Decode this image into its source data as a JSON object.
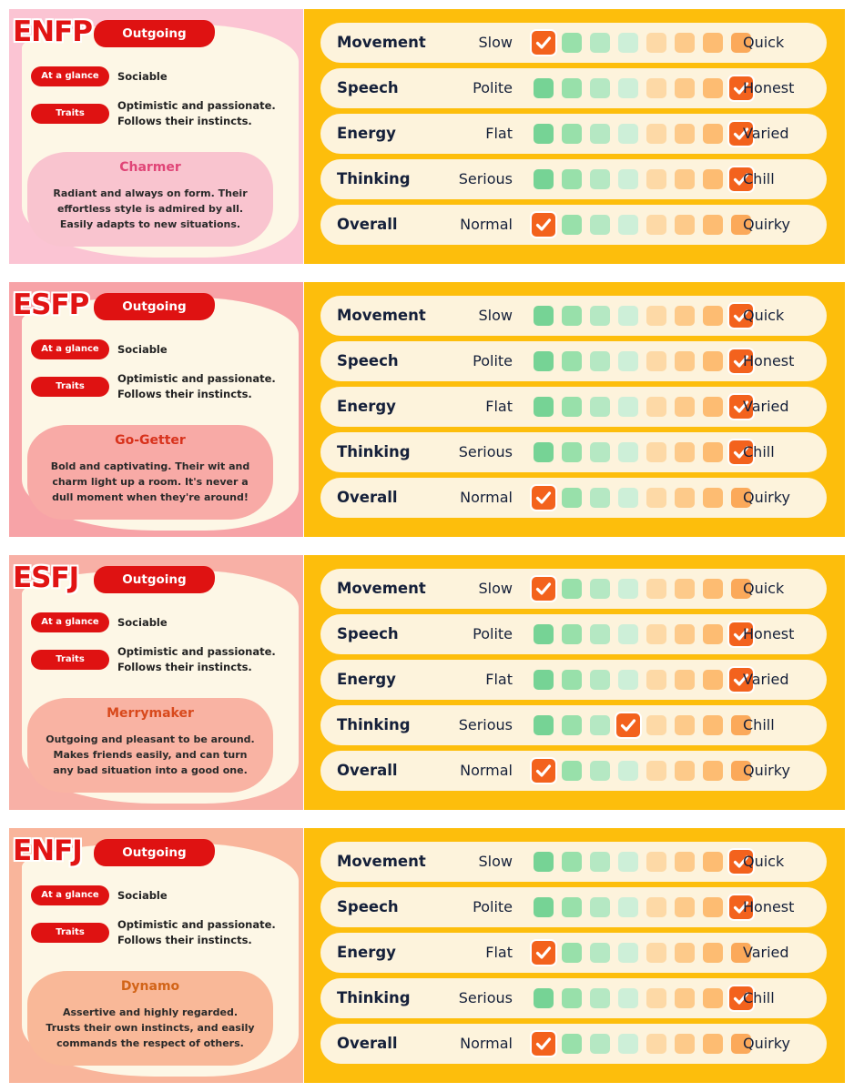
{
  "scale_colors": [
    "#76d395",
    "#98e0aa",
    "#b5e8c3",
    "#cdefd8",
    "#fdd9a6",
    "#fdca8a",
    "#fdbc72",
    "#fba95a"
  ],
  "cards": [
    {
      "code": "ENFP",
      "category": "Outgoing",
      "glance_label": "At a glance",
      "glance_value": "Sociable",
      "traits_label": "Traits",
      "traits_line1": "Optimistic and passionate.",
      "traits_line2": "Follows their instincts.",
      "persona": "Charmer",
      "desc": [
        "Radiant and always on form. Their",
        "effortless style is admired by all.",
        "Easily adapts to new situations."
      ],
      "bg": "#fbc4d3",
      "box": "#f9c4cf",
      "name_color": "#e04577",
      "ratings": [
        {
          "label": "Movement",
          "left": "Slow",
          "right": "Quick",
          "value": 1
        },
        {
          "label": "Speech",
          "left": "Polite",
          "right": "Honest",
          "value": 8
        },
        {
          "label": "Energy",
          "left": "Flat",
          "right": "Varied",
          "value": 8
        },
        {
          "label": "Thinking",
          "left": "Serious",
          "right": "Chill",
          "value": 8
        },
        {
          "label": "Overall",
          "left": "Normal",
          "right": "Quirky",
          "value": 1
        }
      ]
    },
    {
      "code": "ESFP",
      "category": "Outgoing",
      "glance_label": "At a glance",
      "glance_value": "Sociable",
      "traits_label": "Traits",
      "traits_line1": "Optimistic and passionate.",
      "traits_line2": "Follows their instincts.",
      "persona": "Go-Getter",
      "desc": [
        "Bold and captivating. Their wit and",
        "charm light up a room. It's never a",
        "dull moment when they're around!"
      ],
      "bg": "#f7a3a7",
      "box": "#f8aaa6",
      "name_color": "#d8321c",
      "ratings": [
        {
          "label": "Movement",
          "left": "Slow",
          "right": "Quick",
          "value": 8
        },
        {
          "label": "Speech",
          "left": "Polite",
          "right": "Honest",
          "value": 8
        },
        {
          "label": "Energy",
          "left": "Flat",
          "right": "Varied",
          "value": 8
        },
        {
          "label": "Thinking",
          "left": "Serious",
          "right": "Chill",
          "value": 8
        },
        {
          "label": "Overall",
          "left": "Normal",
          "right": "Quirky",
          "value": 1
        }
      ]
    },
    {
      "code": "ESFJ",
      "category": "Outgoing",
      "glance_label": "At a glance",
      "glance_value": "Sociable",
      "traits_label": "Traits",
      "traits_line1": "Optimistic and passionate.",
      "traits_line2": "Follows their instincts.",
      "persona": "Merrymaker",
      "desc": [
        "Outgoing and pleasant to be around.",
        "Makes friends easily, and can turn",
        "any bad situation into a good one."
      ],
      "bg": "#f8b0a6",
      "box": "#f9b3a3",
      "name_color": "#d8491c",
      "ratings": [
        {
          "label": "Movement",
          "left": "Slow",
          "right": "Quick",
          "value": 1
        },
        {
          "label": "Speech",
          "left": "Polite",
          "right": "Honest",
          "value": 8
        },
        {
          "label": "Energy",
          "left": "Flat",
          "right": "Varied",
          "value": 8
        },
        {
          "label": "Thinking",
          "left": "Serious",
          "right": "Chill",
          "value": 4
        },
        {
          "label": "Overall",
          "left": "Normal",
          "right": "Quirky",
          "value": 1
        }
      ]
    },
    {
      "code": "ENFJ",
      "category": "Outgoing",
      "glance_label": "At a glance",
      "glance_value": "Sociable",
      "traits_label": "Traits",
      "traits_line1": "Optimistic and passionate.",
      "traits_line2": "Follows their instincts.",
      "persona": "Dynamo",
      "desc": [
        "Assertive and highly regarded.",
        "Trusts their own instincts, and easily",
        "commands the respect of others."
      ],
      "bg": "#f9b59b",
      "box": "#f9b898",
      "name_color": "#d26418",
      "ratings": [
        {
          "label": "Movement",
          "left": "Slow",
          "right": "Quick",
          "value": 8
        },
        {
          "label": "Speech",
          "left": "Polite",
          "right": "Honest",
          "value": 8
        },
        {
          "label": "Energy",
          "left": "Flat",
          "right": "Varied",
          "value": 1
        },
        {
          "label": "Thinking",
          "left": "Serious",
          "right": "Chill",
          "value": 8
        },
        {
          "label": "Overall",
          "left": "Normal",
          "right": "Quirky",
          "value": 1
        }
      ]
    }
  ]
}
